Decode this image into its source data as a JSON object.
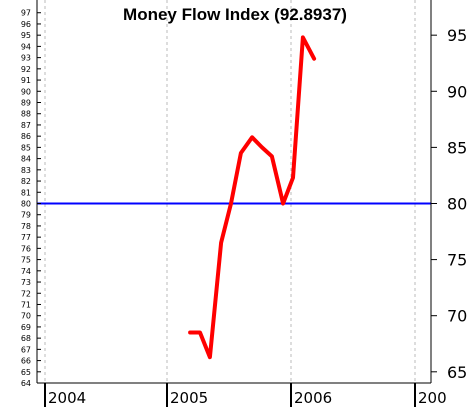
{
  "chart_data": {
    "type": "line",
    "title": "Money Flow Index (92.8937)",
    "x_tick_labels": [
      "2004",
      "2005",
      "2006",
      "200"
    ],
    "y_left_ticks": [
      64,
      65,
      66,
      67,
      68,
      69,
      70,
      71,
      72,
      73,
      74,
      75,
      76,
      77,
      78,
      79,
      80,
      81,
      82,
      83,
      84,
      85,
      86,
      87,
      88,
      89,
      90,
      91,
      92,
      93,
      94,
      95,
      96,
      97
    ],
    "y_right_ticks": [
      65,
      70,
      75,
      80,
      85,
      90,
      95
    ],
    "ylim": [
      63.2,
      97.6
    ],
    "reference_line": {
      "value": 80,
      "color": "#0000ff"
    },
    "series": [
      {
        "color": "#ff0000",
        "x": [
          2005.17,
          2005.25,
          2005.33,
          2005.42,
          2005.5,
          2005.58,
          2005.67,
          2005.75,
          2005.83,
          2005.92,
          2006.0,
          2006.08,
          2006.17
        ],
        "values": [
          68.5,
          68.5,
          66.3,
          76.5,
          80.0,
          84.5,
          85.9,
          85.0,
          84.2,
          80.0,
          82.3,
          94.8,
          92.9
        ]
      }
    ],
    "grid": true,
    "colors": {
      "series": "#ff0000",
      "reference": "#0000ff",
      "grid": "#bbbbbb",
      "axis": "#000000"
    }
  }
}
